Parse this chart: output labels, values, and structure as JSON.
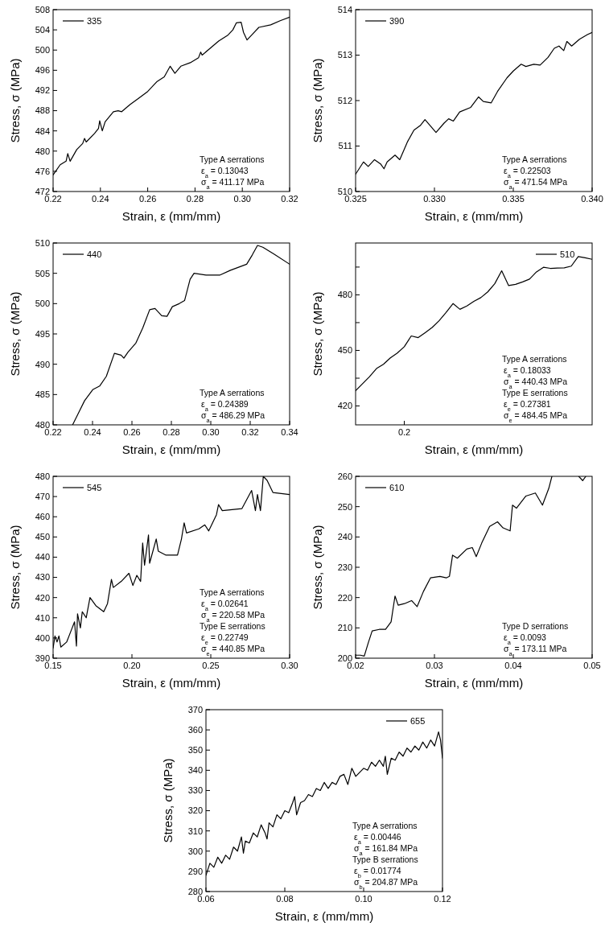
{
  "chart_data": [
    {
      "type": "line",
      "xlabel": "Strain, ε (mm/mm)",
      "ylabel": "Stress, σ (MPa)",
      "legend": "top left",
      "xlim": [
        0.22,
        0.32
      ],
      "xticks": [
        0.22,
        0.24,
        0.26,
        0.28,
        {
          "value": 0.3,
          "label": "0.30"
        },
        0.32
      ],
      "ylim": [
        472,
        508
      ],
      "yticks": [
        472,
        476,
        480,
        484,
        488,
        492,
        496,
        500,
        504,
        508
      ],
      "series": [
        {
          "name": "335",
          "color": "#000000",
          "x": [
            0.22,
            0.223,
            0.2255,
            0.2262,
            0.2272,
            0.23,
            0.2325,
            0.2333,
            0.234,
            0.2375,
            0.2392,
            0.2397,
            0.2408,
            0.242,
            0.2455,
            0.2475,
            0.249,
            0.2525,
            0.256,
            0.26,
            0.264,
            0.267,
            0.2695,
            0.2715,
            0.274,
            0.278,
            0.2815,
            0.2824,
            0.283,
            0.287,
            0.29,
            0.294,
            0.296,
            0.2975,
            0.2995,
            0.3005,
            0.302,
            0.304,
            0.307,
            0.312,
            0.316,
            0.32
          ],
          "values": [
            475.3,
            477.3,
            478,
            479.5,
            478,
            480.3,
            481.5,
            482.5,
            481.8,
            483.5,
            484.5,
            486,
            484,
            485.8,
            487.8,
            488,
            487.8,
            489.2,
            490.4,
            491.8,
            493.8,
            494.7,
            496.8,
            495.4,
            496.8,
            497.5,
            498.5,
            499.6,
            499,
            500.6,
            501.8,
            503,
            504,
            505.4,
            505.5,
            503.5,
            502,
            503,
            504.5,
            505,
            505.8,
            506.5
          ]
        }
      ],
      "annotations": [
        "Type A serrations",
        "ε$_{a}$ = 0.13043",
        "σ$_{a}$ = 411.17 MPa"
      ]
    },
    {
      "type": "line",
      "xlabel": "Strain, ε (mm/mm)",
      "ylabel": "Stress, σ (MPa)",
      "legend": "top left",
      "xlim": [
        0.325,
        0.34
      ],
      "xticks": [
        0.325,
        {
          "value": 0.33,
          "label": "0.330"
        },
        0.335,
        {
          "value": 0.34,
          "label": "0.340"
        }
      ],
      "ylim": [
        510,
        514
      ],
      "yticks": [
        510,
        511,
        512,
        513,
        514
      ],
      "series": [
        {
          "name": "390",
          "color": "#000000",
          "x": [
            0.325,
            0.3255,
            0.3258,
            0.3262,
            0.3266,
            0.3268,
            0.327,
            0.3275,
            0.3278,
            0.3283,
            0.3287,
            0.3291,
            0.3294,
            0.3301,
            0.3306,
            0.3309,
            0.3312,
            0.3316,
            0.3323,
            0.3328,
            0.3331,
            0.3336,
            0.334,
            0.3346,
            0.335,
            0.3355,
            0.3358,
            0.3363,
            0.3367,
            0.3372,
            0.3376,
            0.3379,
            0.3382,
            0.3384,
            0.3387,
            0.3392,
            0.3397,
            0.34
          ],
          "values": [
            510.38,
            510.65,
            510.55,
            510.7,
            510.6,
            510.5,
            510.65,
            510.8,
            510.7,
            511.1,
            511.35,
            511.45,
            511.58,
            511.3,
            511.5,
            511.6,
            511.55,
            511.75,
            511.85,
            512.08,
            511.98,
            511.95,
            512.2,
            512.5,
            512.65,
            512.8,
            512.75,
            512.8,
            512.78,
            512.95,
            513.15,
            513.2,
            513.1,
            513.3,
            513.2,
            513.35,
            513.45,
            513.5
          ]
        }
      ],
      "annotations": [
        "Type A serrations",
        "ε$_{a}$ = 0.22503",
        "σ$_{a}$ = 471.54 MPa"
      ]
    },
    {
      "type": "line",
      "xlabel": "Strain, ε (mm/mm)",
      "ylabel": "Stress, σ (MPa)",
      "legend": "top left",
      "xlim": [
        0.22,
        0.34
      ],
      "xticks": [
        0.22,
        0.24,
        0.26,
        0.28,
        {
          "value": 0.3,
          "label": "0.30"
        },
        0.32,
        0.34
      ],
      "ylim": [
        480,
        510
      ],
      "yticks": [
        480,
        485,
        490,
        495,
        500,
        505,
        510
      ],
      "series": [
        {
          "name": "440",
          "color": "#000000",
          "x": [
            0.2299,
            0.236,
            0.2401,
            0.2436,
            0.247,
            0.2511,
            0.2545,
            0.2559,
            0.258,
            0.262,
            0.2655,
            0.269,
            0.2717,
            0.2751,
            0.2778,
            0.2805,
            0.284,
            0.2867,
            0.2895,
            0.2915,
            0.2977,
            0.3045,
            0.31,
            0.3182,
            0.321,
            0.3237,
            0.3264,
            0.3319,
            0.34
          ],
          "values": [
            480,
            484,
            485.8,
            486.4,
            488,
            491.8,
            491.5,
            491,
            492,
            493.5,
            496,
            499,
            499.2,
            498,
            497.9,
            499.5,
            500,
            500.5,
            504,
            505,
            504.7,
            504.7,
            505.5,
            506.5,
            508,
            509.6,
            509.3,
            508.2,
            506.5
          ]
        }
      ],
      "annotations": [
        "Type A serrations",
        "ε$_{a}$ = 0.24389",
        "σ$_{a}$ = 486.29 MPa"
      ]
    },
    {
      "type": "line",
      "xlabel": "Strain, ε (mm/mm)",
      "ylabel": "Stress, σ (MPa)",
      "legend": "top right",
      "categories": [
        null,
        null,
        null,
        null,
        null,
        null,
        null,
        "0.2",
        null,
        null,
        null,
        null,
        null,
        null,
        null,
        null,
        null,
        null,
        null,
        null,
        null,
        null,
        null,
        null,
        null,
        null,
        null,
        null,
        null,
        null,
        null,
        null,
        null,
        null,
        null
      ],
      "ylim": [
        409.8,
        508
      ],
      "yticks": [
        420,
        {
          "value": 435,
          "label": null
        },
        450,
        {
          "value": 465,
          "label": null
        },
        480,
        {
          "value": 495,
          "label": null
        }
      ],
      "series": [
        {
          "name": "510",
          "color": "#000000",
          "values": [
            428.2,
            432,
            435.8,
            440.2,
            442.5,
            446,
            448.6,
            452,
            457.8,
            456.9,
            459.6,
            462.4,
            466,
            470.5,
            475.3,
            472.2,
            474,
            476.5,
            478.5,
            481.6,
            486,
            493,
            485,
            485.7,
            487,
            488.5,
            492.4,
            494.9,
            494.3,
            494.5,
            494.6,
            495.5,
            500.7,
            500,
            499.2
          ]
        }
      ],
      "annotations": [
        "Type A serrations",
        "ε$_{a}$ = 0.18033",
        "σ$_{a}$ = 440.43 MPa",
        "Type E serrations",
        "ε$_{e}$ = 0.27381",
        "σ$_{e}$ = 484.45 MPa"
      ]
    },
    {
      "type": "line",
      "xlabel": "Strain, ε (mm/mm)",
      "ylabel": "Stress, σ (MPa)",
      "legend": "top left",
      "xlim": [
        0.15,
        0.3
      ],
      "xticks": [
        0.15,
        {
          "value": 0.2,
          "label": "0.20"
        },
        0.25,
        {
          "value": 0.3,
          "label": "0.30"
        }
      ],
      "ylim": [
        390,
        480
      ],
      "yticks": [
        390,
        400,
        410,
        420,
        430,
        440,
        450,
        460,
        470,
        480
      ],
      "series": [
        {
          "name": "545",
          "color": "#000000",
          "x": [
            0.15,
            0.1512,
            0.1525,
            0.1537,
            0.1549,
            0.1586,
            0.1611,
            0.1636,
            0.1648,
            0.1655,
            0.1673,
            0.1685,
            0.171,
            0.1734,
            0.1771,
            0.1821,
            0.1845,
            0.187,
            0.1882,
            0.1932,
            0.1981,
            0.2006,
            0.2031,
            0.2055,
            0.2068,
            0.208,
            0.2105,
            0.2112,
            0.2154,
            0.2167,
            0.2216,
            0.2289,
            0.2314,
            0.2331,
            0.2346,
            0.2425,
            0.2462,
            0.2487,
            0.2536,
            0.2549,
            0.2573,
            0.2697,
            0.2759,
            0.2783,
            0.2796,
            0.2815,
            0.2833,
            0.2857,
            0.2894,
            0.3
          ],
          "values": [
            395,
            401,
            398,
            401,
            395.5,
            398,
            403,
            408,
            396,
            412,
            405,
            413,
            410,
            420,
            416,
            413,
            417,
            429,
            425,
            428,
            432,
            426,
            431,
            428,
            447,
            436,
            451,
            437,
            449,
            443,
            441,
            441,
            449,
            457,
            452,
            454,
            456,
            453,
            461,
            466,
            463,
            464,
            473,
            463,
            471,
            463,
            480,
            478,
            472,
            471
          ]
        }
      ],
      "annotations": [
        "Type A serrations",
        "ε$_{a}$ = 0.02641",
        "σ$_{a}$ = 220.58 MPa",
        "Type E serrations",
        "ε$_{e}$ = 0.22749",
        "σ$_{e}$ = 440.85 MPa"
      ]
    },
    {
      "type": "line",
      "xlabel": "Strain, ε (mm/mm)",
      "ylabel": "Stress, σ (MPa)",
      "legend": "top left",
      "xlim": [
        0.02,
        0.05
      ],
      "xticks": [
        0.02,
        0.03,
        0.04,
        0.05
      ],
      "ylim": [
        200,
        260
      ],
      "yticks": [
        200,
        210,
        220,
        230,
        240,
        250,
        260
      ],
      "series": [
        {
          "name": "610",
          "color": "#000000",
          "x": [
            0.02,
            0.0206,
            0.0211,
            0.0216,
            0.0221,
            0.023,
            0.0238,
            0.0245,
            0.025,
            0.0254,
            0.0262,
            0.0271,
            0.0278,
            0.0286,
            0.0295,
            0.0307,
            0.0315,
            0.0319,
            0.0323,
            0.0329,
            0.0341,
            0.0348,
            0.0353,
            0.036,
            0.037,
            0.038,
            0.0387,
            0.0396,
            0.0399,
            0.0404,
            0.0416,
            0.0428,
            0.0437,
            0.0445,
            0.0449,
            0.0466,
            0.0483,
            0.0488,
            0.0492
          ],
          "values": [
            201,
            201,
            200.7,
            205,
            209,
            209.5,
            209.5,
            212,
            220.5,
            217.5,
            218,
            219,
            217,
            222,
            226.5,
            227,
            226.5,
            227,
            234,
            233,
            236,
            236.5,
            233.5,
            238,
            243.5,
            245,
            243,
            242,
            250.5,
            249.5,
            253.5,
            254.5,
            250.5,
            256,
            260,
            null,
            260,
            258.6,
            260
          ]
        }
      ],
      "annotations": [
        "Type D serrations",
        "ε$_{a}$ = 0.0093",
        "σ$_{a}$ = 173.11 MPa"
      ]
    },
    {
      "type": "line",
      "xlabel": "Strain, ε (mm/mm)",
      "ylabel": "Stress, σ (MPa)",
      "legend": "top right",
      "xlim": [
        0.06,
        0.12
      ],
      "xticks": [
        0.06,
        0.08,
        {
          "value": 0.1,
          "label": "0.10"
        },
        0.12
      ],
      "ylim": [
        280,
        370
      ],
      "yticks": [
        280,
        290,
        300,
        310,
        320,
        330,
        340,
        350,
        360,
        370
      ],
      "series": [
        {
          "name": "655",
          "color": "#000000",
          "x": [
            0.06,
            0.061,
            0.062,
            0.063,
            0.064,
            0.065,
            0.066,
            0.067,
            0.068,
            0.069,
            0.0695,
            0.07,
            0.071,
            0.072,
            0.073,
            0.074,
            0.075,
            0.0755,
            0.076,
            0.077,
            0.078,
            0.079,
            0.08,
            0.081,
            0.082,
            0.0825,
            0.083,
            0.084,
            0.085,
            0.086,
            0.087,
            0.088,
            0.089,
            0.09,
            0.091,
            0.092,
            0.093,
            0.094,
            0.095,
            0.096,
            0.097,
            0.098,
            0.099,
            0.1,
            0.101,
            0.102,
            0.103,
            0.104,
            0.105,
            0.1055,
            0.106,
            0.107,
            0.108,
            0.109,
            0.11,
            0.111,
            0.112,
            0.113,
            0.114,
            0.115,
            0.116,
            0.117,
            0.118,
            0.119,
            0.1195,
            0.12
          ],
          "values": [
            288,
            294,
            292,
            297,
            294,
            298,
            296,
            302,
            300,
            307,
            299,
            305,
            304,
            309,
            307,
            313,
            309,
            306,
            314,
            312,
            318,
            316,
            320,
            319,
            324,
            327,
            318,
            324,
            325,
            328,
            327,
            331,
            330,
            334,
            331,
            334,
            333,
            337,
            338,
            333,
            341,
            337,
            339,
            341,
            340,
            344,
            342,
            345,
            342,
            347,
            338,
            346,
            345,
            349,
            347,
            351,
            349,
            352,
            350,
            354,
            351,
            355,
            352,
            359,
            355,
            346
          ]
        }
      ],
      "annotations": [
        "Type A serrations",
        "ε$_{a}$ = 0.00446",
        "σ$_{a}$ = 161.84 MPa",
        "Type B serrations",
        "ε$_{b}$ = 0.01774",
        "σ$_{b}$ = 204.87 MPa"
      ]
    }
  ]
}
